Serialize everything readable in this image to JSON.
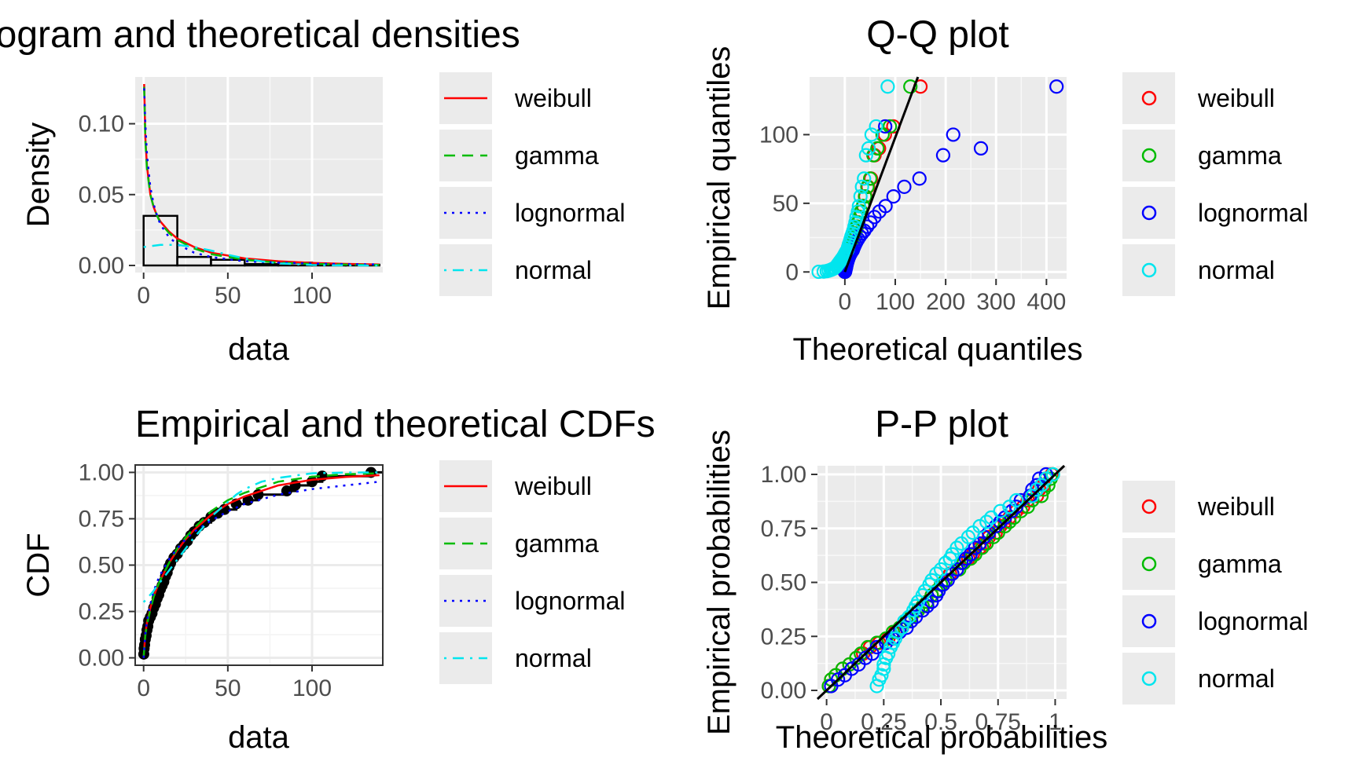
{
  "colors": {
    "weibull": "#ff0000",
    "gamma": "#00bb00",
    "lognormal": "#0000ff",
    "normal": "#00e5ee",
    "panel_bg": "#ebebeb",
    "grid": "#ffffff"
  },
  "chart_data": [
    {
      "id": "density",
      "type": "histogram",
      "title": "Histogram and theoretical densities",
      "xlabel": "data",
      "ylabel": "Density",
      "xlim": [
        -5,
        142
      ],
      "ylim": [
        -0.005,
        0.133
      ],
      "xticks": [
        0,
        50,
        100
      ],
      "yticks": [
        0,
        0.05,
        0.1
      ],
      "ytick_labels": [
        "0.00",
        "0.05",
        "0.10"
      ],
      "grid": true,
      "legend_position": "right",
      "bins": [
        {
          "x0": 0,
          "x1": 20,
          "density": 0.035
        },
        {
          "x0": 20,
          "x1": 40,
          "density": 0.006
        },
        {
          "x0": 40,
          "x1": 60,
          "density": 0.004
        },
        {
          "x0": 60,
          "x1": 80,
          "density": 0.001
        },
        {
          "x0": 80,
          "x1": 100,
          "density": 0.002
        },
        {
          "x0": 100,
          "x1": 120,
          "density": 0.0005
        },
        {
          "x0": 120,
          "x1": 140,
          "density": 0.0005
        }
      ],
      "series": [
        {
          "name": "weibull",
          "dash": "solid",
          "x": [
            0.3,
            1,
            2,
            4,
            6,
            8,
            10,
            15,
            20,
            30,
            40,
            60,
            80,
            100,
            120,
            140
          ],
          "y": [
            0.128,
            0.09,
            0.07,
            0.05,
            0.041,
            0.035,
            0.031,
            0.024,
            0.019,
            0.013,
            0.009,
            0.005,
            0.003,
            0.0018,
            0.0011,
            0.0007
          ]
        },
        {
          "name": "gamma",
          "dash": "dashed",
          "x": [
            0.3,
            1,
            2,
            4,
            6,
            8,
            10,
            15,
            20,
            30,
            40,
            60,
            80,
            100,
            120,
            140
          ],
          "y": [
            0.126,
            0.088,
            0.068,
            0.05,
            0.041,
            0.035,
            0.03,
            0.023,
            0.018,
            0.012,
            0.008,
            0.004,
            0.002,
            0.0011,
            0.0006,
            0.0003
          ]
        },
        {
          "name": "lognormal",
          "dash": "dotted",
          "x": [
            0.3,
            1,
            2,
            4,
            6,
            8,
            10,
            15,
            20,
            30,
            40,
            60,
            80,
            100,
            120,
            140
          ],
          "y": [
            0.125,
            0.1,
            0.078,
            0.055,
            0.043,
            0.035,
            0.029,
            0.02,
            0.015,
            0.009,
            0.006,
            0.003,
            0.002,
            0.0013,
            0.0009,
            0.0007
          ]
        },
        {
          "name": "normal",
          "dash": "dotdash",
          "x": [
            0,
            10,
            20,
            30,
            40,
            50,
            60,
            70,
            80,
            100,
            120,
            140
          ],
          "y": [
            0.013,
            0.0145,
            0.0145,
            0.013,
            0.0105,
            0.0075,
            0.005,
            0.003,
            0.0015,
            0.0003,
            2e-05,
            0
          ]
        }
      ]
    },
    {
      "id": "qq",
      "type": "scatter",
      "title": "Q-Q plot",
      "xlabel": "Theoretical quantiles",
      "ylabel": "Empirical quantiles",
      "xlim": [
        -70,
        440
      ],
      "ylim": [
        -5,
        142
      ],
      "xticks": [
        0,
        100,
        200,
        300,
        400
      ],
      "yticks": [
        0,
        50,
        100
      ],
      "grid": true,
      "legend_position": "right",
      "empirical_quantiles": [
        0.1,
        0.3,
        0.6,
        1.0,
        1.5,
        2.0,
        2.5,
        3.0,
        4.0,
        5.0,
        6.0,
        7.0,
        8.0,
        9.0,
        10.0,
        11.0,
        12.0,
        13.0,
        14.0,
        15.0,
        16.0,
        18.0,
        20.0,
        22.0,
        24.0,
        26.0,
        28.0,
        30.0,
        33.0,
        36.0,
        40.0,
        44.0,
        48.0,
        55.0,
        62.0,
        68.0,
        85.0,
        90.0,
        100.0,
        106.0,
        135.0
      ],
      "series": [
        {
          "name": "weibull",
          "theoretical_quantiles": [
            0.0,
            0.0,
            0.0,
            0.1,
            0.2,
            0.4,
            0.6,
            0.9,
            1.2,
            1.6,
            2.0,
            2.5,
            3.1,
            3.7,
            4.4,
            5.1,
            5.9,
            6.8,
            7.8,
            8.8,
            10.0,
            11.2,
            12.6,
            14.1,
            15.7,
            17.5,
            19.4,
            21.5,
            23.9,
            26.6,
            29.5,
            32.8,
            36.6,
            40.9,
            45.9,
            51.8,
            58.9,
            67.8,
            79.4,
            96.1,
            150.0
          ]
        },
        {
          "name": "gamma",
          "theoretical_quantiles": [
            0.0,
            0.0,
            0.0,
            0.1,
            0.2,
            0.4,
            0.6,
            0.8,
            1.1,
            1.5,
            1.9,
            2.4,
            3.0,
            3.6,
            4.3,
            5.1,
            5.9,
            6.8,
            7.7,
            8.8,
            10.0,
            11.2,
            12.6,
            14.1,
            15.7,
            17.4,
            19.3,
            21.4,
            23.7,
            26.3,
            29.1,
            32.3,
            35.9,
            40.0,
            44.7,
            50.2,
            56.7,
            64.6,
            74.8,
            89.3,
            130.0
          ]
        },
        {
          "name": "lognormal",
          "theoretical_quantiles": [
            0.1,
            0.3,
            0.5,
            0.7,
            1.0,
            1.3,
            1.7,
            2.1,
            2.6,
            3.2,
            3.8,
            4.5,
            5.3,
            6.2,
            7.1,
            8.2,
            9.4,
            10.8,
            12.3,
            14.0,
            15.9,
            18.0,
            20.4,
            23.1,
            26.3,
            29.8,
            33.9,
            38.6,
            44.2,
            50.8,
            58.7,
            68.5,
            80.7,
            96.5,
            117.9,
            148.0,
            195.0,
            270.0,
            215.0,
            80.0,
            420.0
          ]
        },
        {
          "name": "normal",
          "theoretical_quantiles": [
            -52.0,
            -42.0,
            -36.0,
            -32.0,
            -28.0,
            -25.0,
            -22.0,
            -20.0,
            -17.0,
            -15.0,
            -13.0,
            -11.0,
            -9.0,
            -7.0,
            -5.0,
            -3.0,
            -1.5,
            0.0,
            1.5,
            3.0,
            5.0,
            6.5,
            8.0,
            10.0,
            11.5,
            13.0,
            15.0,
            17.0,
            19.0,
            21.0,
            23.0,
            26.0,
            28.0,
            31.0,
            34.0,
            38.0,
            42.0,
            47.0,
            53.0,
            62.0,
            85.0
          ]
        }
      ],
      "reference_line": {
        "x": [
          0,
          145
        ],
        "y": [
          0,
          142
        ]
      }
    },
    {
      "id": "cdf",
      "type": "line",
      "title": "Empirical and theoretical CDFs",
      "xlabel": "data",
      "ylabel": "CDF",
      "xlim": [
        -5,
        142
      ],
      "ylim": [
        -0.04,
        1.04
      ],
      "xticks": [
        0,
        50,
        100
      ],
      "yticks": [
        0,
        0.25,
        0.5,
        0.75,
        1.0
      ],
      "ytick_labels": [
        "0.00",
        "0.25",
        "0.50",
        "0.75",
        "1.00"
      ],
      "grid": true,
      "legend_position": "right",
      "empirical": {
        "x": [
          0.1,
          0.3,
          0.6,
          1.0,
          1.5,
          2.0,
          2.5,
          3.0,
          4.0,
          5.0,
          6.0,
          7.0,
          8.0,
          9.0,
          10.0,
          11.0,
          12.0,
          13.0,
          14.0,
          15.0,
          16.0,
          18.0,
          20.0,
          22.0,
          24.0,
          26.0,
          28.0,
          30.0,
          33.0,
          36.0,
          40.0,
          44.0,
          48.0,
          55.0,
          62.0,
          68.0,
          85.0,
          90.0,
          100.0,
          106.0,
          135.0
        ],
        "y": [
          0.02,
          0.05,
          0.07,
          0.1,
          0.12,
          0.15,
          0.17,
          0.2,
          0.22,
          0.24,
          0.27,
          0.29,
          0.32,
          0.34,
          0.37,
          0.39,
          0.41,
          0.44,
          0.46,
          0.49,
          0.51,
          0.54,
          0.56,
          0.59,
          0.61,
          0.63,
          0.66,
          0.68,
          0.71,
          0.73,
          0.76,
          0.78,
          0.8,
          0.83,
          0.85,
          0.88,
          0.9,
          0.93,
          0.95,
          0.98,
          1.0
        ]
      },
      "series": [
        {
          "name": "weibull",
          "dash": "solid",
          "x": [
            0,
            1,
            2,
            4,
            6,
            8,
            10,
            15,
            20,
            25,
            30,
            40,
            50,
            60,
            80,
            100,
            120,
            140
          ],
          "y": [
            0,
            0.13,
            0.19,
            0.27,
            0.33,
            0.38,
            0.42,
            0.51,
            0.58,
            0.64,
            0.69,
            0.77,
            0.83,
            0.87,
            0.93,
            0.96,
            0.975,
            0.985
          ]
        },
        {
          "name": "gamma",
          "dash": "dashed",
          "x": [
            0,
            1,
            2,
            4,
            6,
            8,
            10,
            15,
            20,
            25,
            30,
            40,
            50,
            60,
            80,
            100,
            120,
            140
          ],
          "y": [
            0,
            0.12,
            0.18,
            0.26,
            0.33,
            0.38,
            0.42,
            0.51,
            0.59,
            0.65,
            0.7,
            0.79,
            0.85,
            0.89,
            0.95,
            0.977,
            0.99,
            0.995
          ]
        },
        {
          "name": "lognormal",
          "dash": "dotted",
          "x": [
            0,
            1,
            2,
            4,
            6,
            8,
            10,
            15,
            20,
            25,
            30,
            40,
            50,
            60,
            80,
            100,
            120,
            140
          ],
          "y": [
            0,
            0.13,
            0.2,
            0.29,
            0.36,
            0.41,
            0.45,
            0.53,
            0.59,
            0.64,
            0.68,
            0.74,
            0.79,
            0.83,
            0.88,
            0.91,
            0.93,
            0.95
          ]
        },
        {
          "name": "normal",
          "dash": "dotdash",
          "x": [
            0,
            5,
            10,
            15,
            20,
            25,
            30,
            35,
            40,
            45,
            50,
            55,
            60,
            70,
            80,
            100,
            120,
            140
          ],
          "y": [
            0.3,
            0.35,
            0.41,
            0.47,
            0.53,
            0.59,
            0.65,
            0.7,
            0.76,
            0.8,
            0.84,
            0.88,
            0.91,
            0.95,
            0.97,
            0.995,
            0.999,
            1.0
          ]
        }
      ]
    },
    {
      "id": "pp",
      "type": "scatter",
      "title": "P-P plot",
      "xlabel": "Theoretical probabilities",
      "ylabel": "Empirical probabilities",
      "xlim": [
        -0.04,
        1.05
      ],
      "ylim": [
        -0.04,
        1.04
      ],
      "xticks": [
        0,
        0.25,
        0.5,
        0.75,
        1.0
      ],
      "yticks": [
        0,
        0.25,
        0.5,
        0.75,
        1.0
      ],
      "ytick_labels": [
        "0.00",
        "0.25",
        "0.50",
        "0.75",
        "1.00"
      ],
      "grid": true,
      "legend_position": "right",
      "empirical_probabilities": [
        0.02,
        0.05,
        0.07,
        0.1,
        0.12,
        0.15,
        0.17,
        0.2,
        0.22,
        0.24,
        0.27,
        0.29,
        0.32,
        0.34,
        0.37,
        0.39,
        0.41,
        0.44,
        0.46,
        0.49,
        0.51,
        0.54,
        0.56,
        0.59,
        0.61,
        0.63,
        0.66,
        0.68,
        0.71,
        0.73,
        0.76,
        0.78,
        0.8,
        0.83,
        0.85,
        0.88,
        0.9,
        0.93,
        0.95,
        0.98,
        1.0
      ],
      "series": [
        {
          "name": "weibull",
          "theoretical_probabilities": [
            0.01,
            0.02,
            0.04,
            0.07,
            0.1,
            0.13,
            0.16,
            0.19,
            0.23,
            0.27,
            0.3,
            0.33,
            0.35,
            0.37,
            0.4,
            0.42,
            0.44,
            0.46,
            0.48,
            0.5,
            0.52,
            0.54,
            0.57,
            0.6,
            0.62,
            0.64,
            0.67,
            0.69,
            0.71,
            0.74,
            0.76,
            0.78,
            0.8,
            0.83,
            0.86,
            0.88,
            0.92,
            0.93,
            0.95,
            0.96,
            0.985
          ]
        },
        {
          "name": "gamma",
          "theoretical_probabilities": [
            0.01,
            0.02,
            0.04,
            0.07,
            0.1,
            0.13,
            0.15,
            0.18,
            0.22,
            0.26,
            0.29,
            0.32,
            0.35,
            0.37,
            0.4,
            0.42,
            0.44,
            0.46,
            0.48,
            0.5,
            0.52,
            0.55,
            0.58,
            0.6,
            0.63,
            0.65,
            0.68,
            0.7,
            0.73,
            0.75,
            0.78,
            0.8,
            0.82,
            0.85,
            0.88,
            0.9,
            0.94,
            0.95,
            0.97,
            0.98,
            0.99
          ]
        },
        {
          "name": "lognormal",
          "theoretical_probabilities": [
            0.02,
            0.05,
            0.08,
            0.11,
            0.14,
            0.17,
            0.2,
            0.22,
            0.26,
            0.29,
            0.32,
            0.35,
            0.37,
            0.39,
            0.42,
            0.44,
            0.46,
            0.48,
            0.49,
            0.51,
            0.53,
            0.55,
            0.57,
            0.59,
            0.61,
            0.63,
            0.65,
            0.67,
            0.69,
            0.71,
            0.74,
            0.76,
            0.78,
            0.81,
            0.83,
            0.85,
            0.89,
            0.9,
            0.92,
            0.93,
            0.96
          ]
        },
        {
          "name": "normal",
          "theoretical_probabilities": [
            0.22,
            0.23,
            0.24,
            0.25,
            0.25,
            0.26,
            0.27,
            0.28,
            0.29,
            0.3,
            0.31,
            0.33,
            0.34,
            0.36,
            0.38,
            0.39,
            0.4,
            0.42,
            0.43,
            0.45,
            0.46,
            0.48,
            0.5,
            0.52,
            0.54,
            0.55,
            0.57,
            0.59,
            0.62,
            0.64,
            0.67,
            0.7,
            0.72,
            0.76,
            0.8,
            0.83,
            0.9,
            0.92,
            0.94,
            0.96,
            0.99
          ]
        }
      ],
      "reference_line": {
        "x": [
          -0.04,
          1.04
        ],
        "y": [
          -0.04,
          1.04
        ]
      }
    }
  ]
}
